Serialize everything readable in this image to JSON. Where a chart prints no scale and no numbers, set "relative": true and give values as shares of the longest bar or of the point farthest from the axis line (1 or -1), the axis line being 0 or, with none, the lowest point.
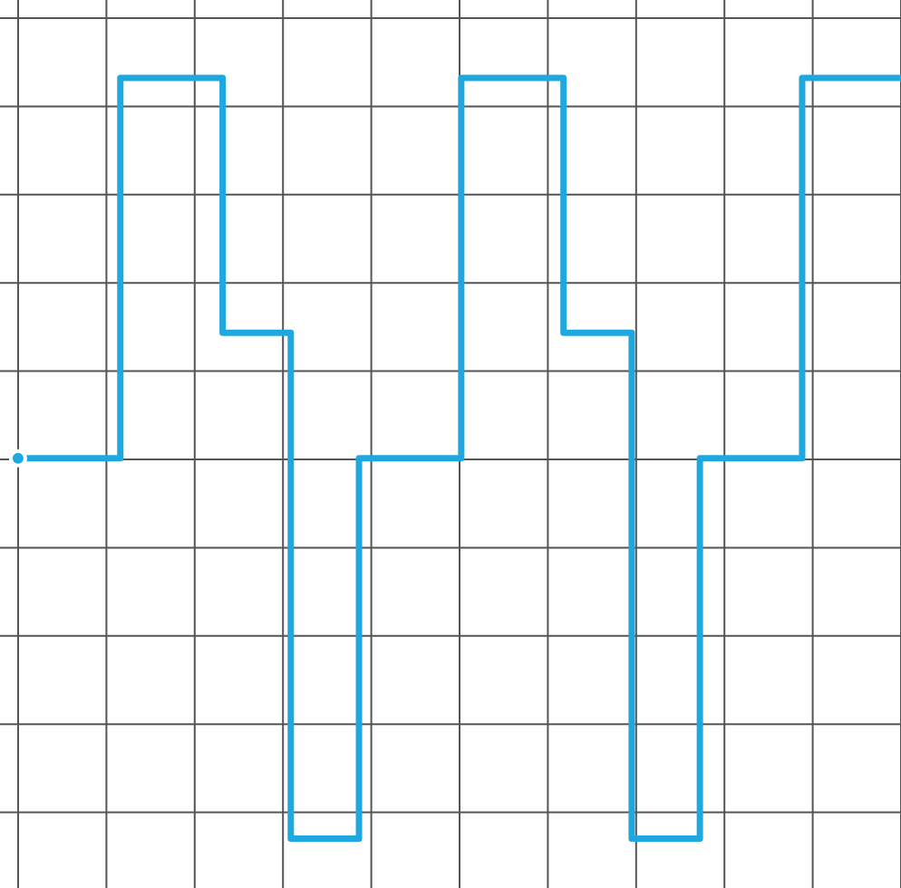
{
  "chart_data": {
    "type": "step",
    "relative": true,
    "grid": true,
    "color": "#1fa8df",
    "categories": [
      null,
      null,
      null,
      null,
      null,
      null,
      null,
      null,
      null,
      null,
      null,
      null,
      null,
      null,
      null,
      null,
      null,
      null,
      null,
      null,
      null,
      null,
      null,
      null,
      null,
      null,
      null
    ],
    "values": [
      0,
      0,
      0,
      1,
      1,
      1,
      0.33,
      0.33,
      -1,
      -1,
      0,
      0,
      0,
      1,
      1,
      1,
      0.33,
      0.33,
      -1,
      -1,
      0,
      0,
      0,
      1,
      1,
      1,
      1
    ]
  }
}
